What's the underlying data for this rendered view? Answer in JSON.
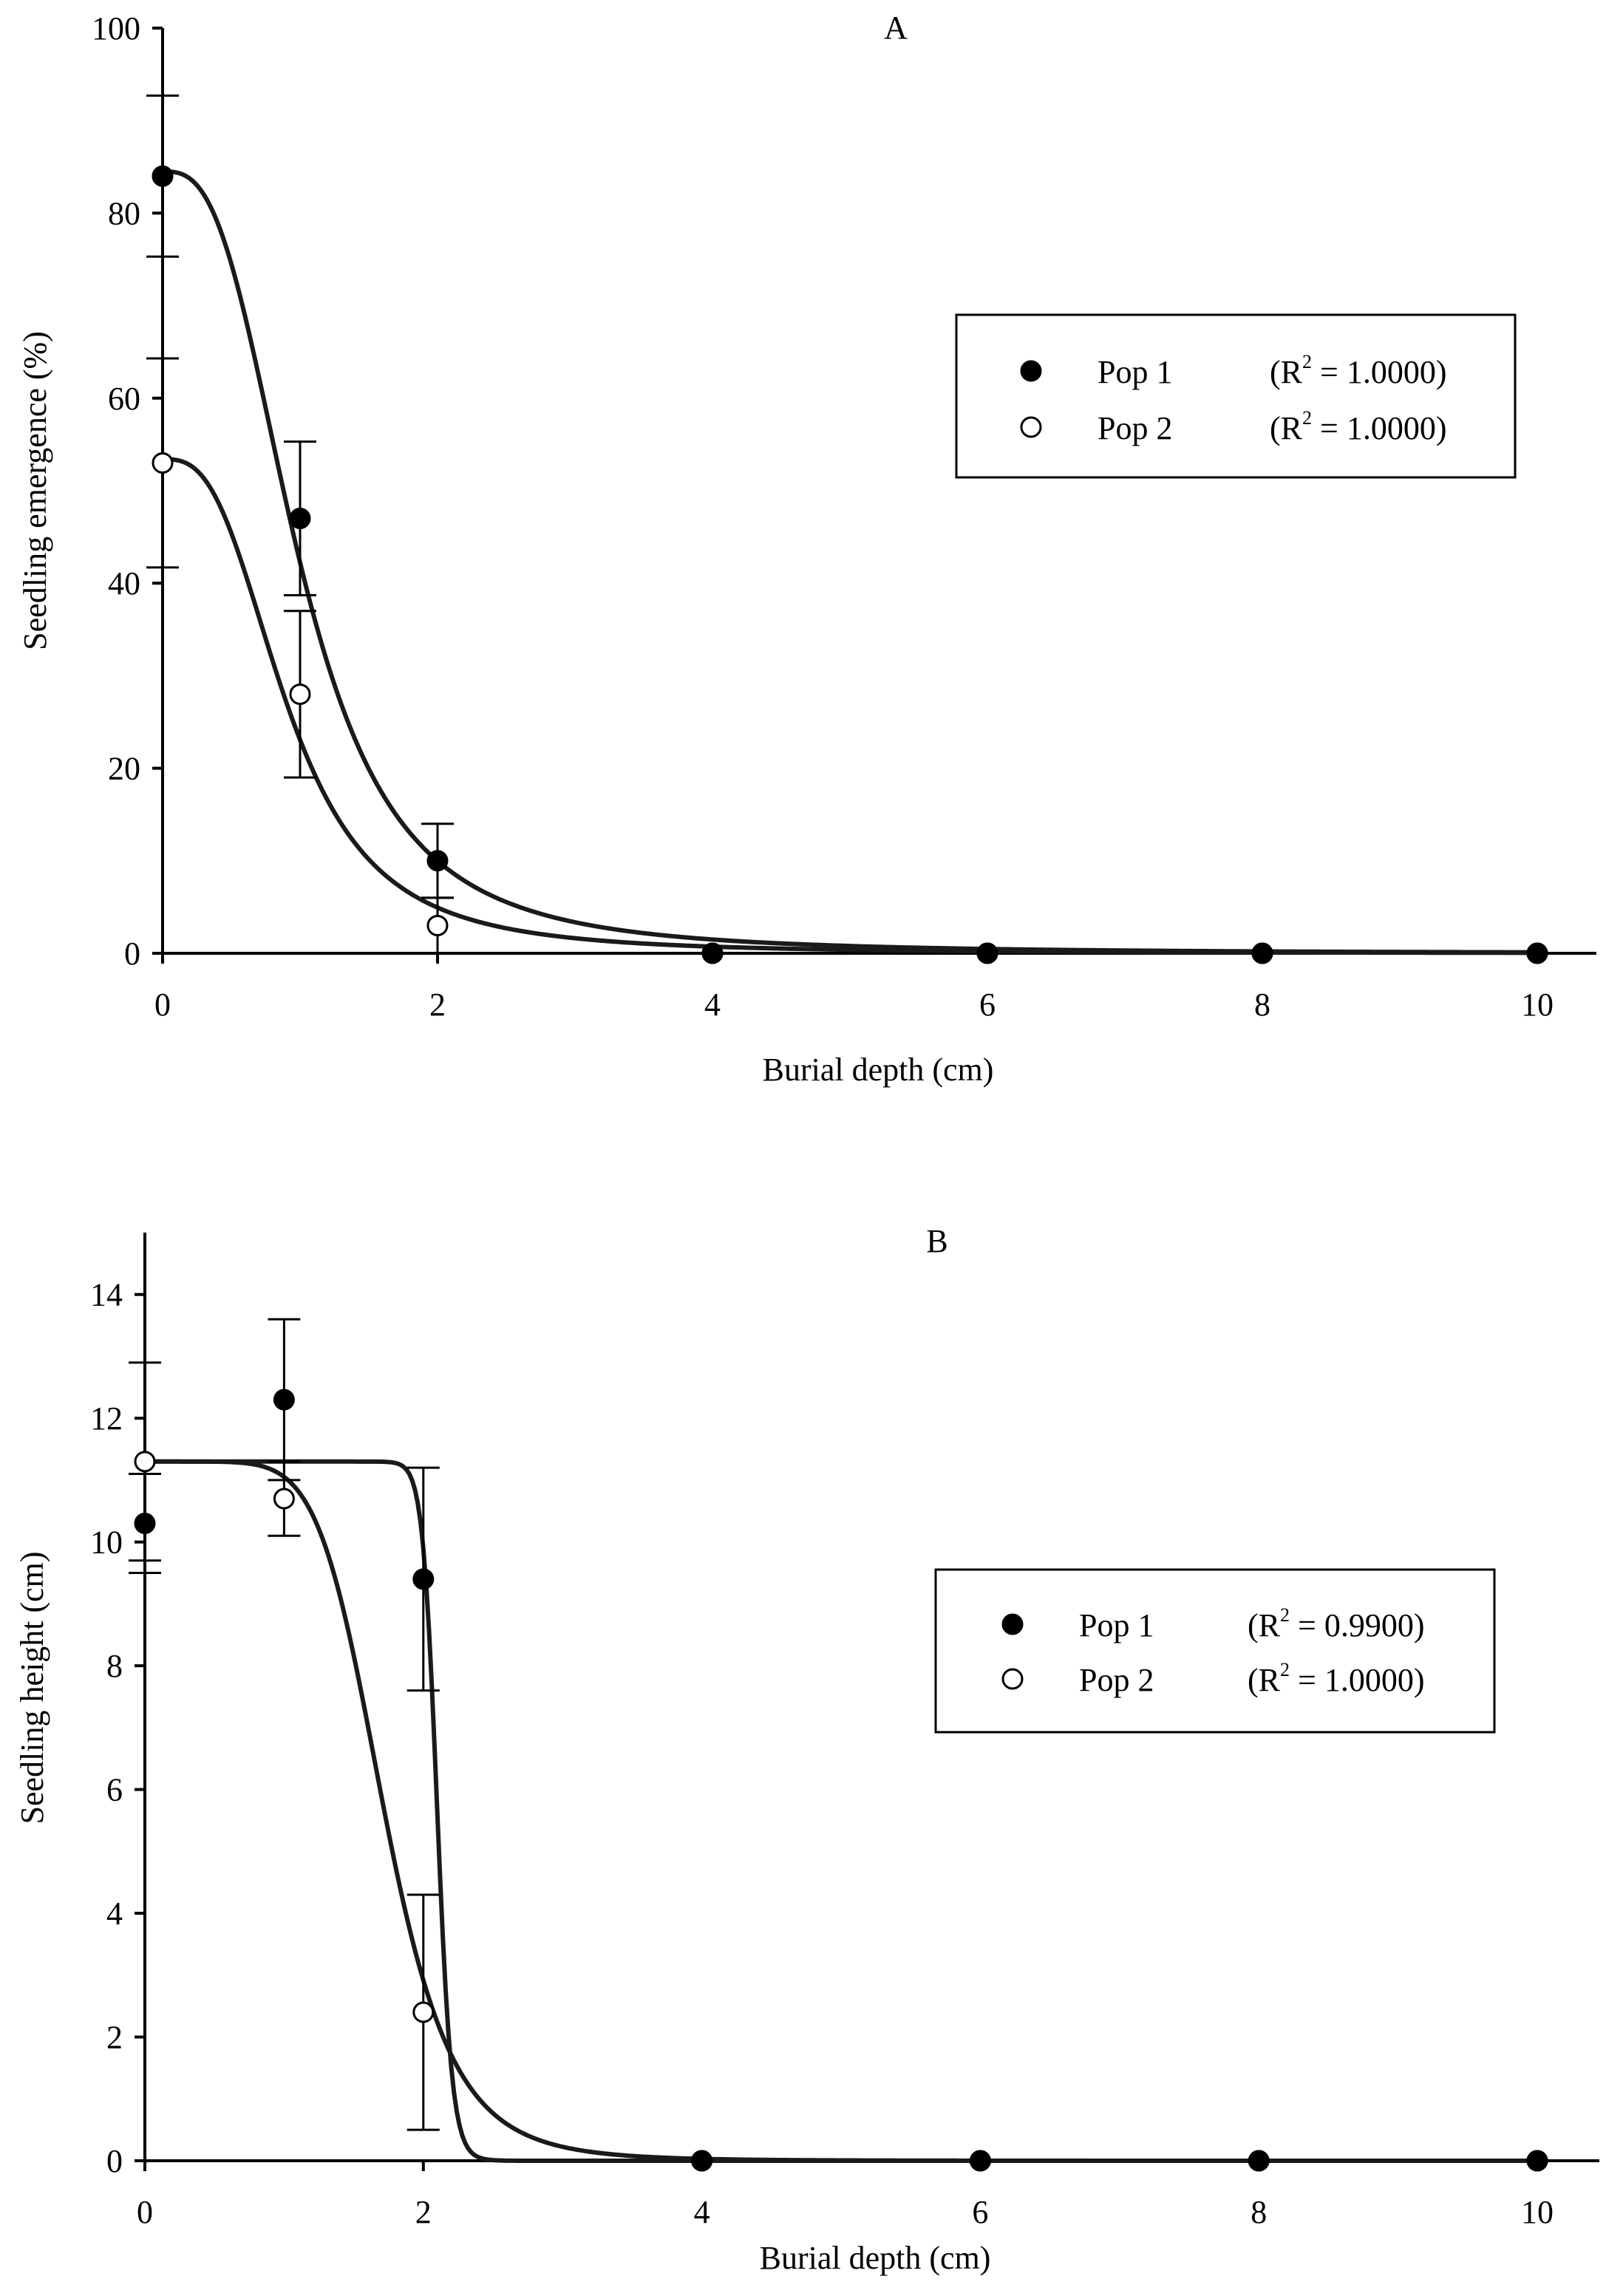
{
  "chart_data": [
    {
      "type": "scatter",
      "panel": "A",
      "title": "A",
      "xlabel": "Burial depth (cm)",
      "ylabel": "Seedling emergence (%)",
      "xlim": [
        0,
        10.5
      ],
      "ylim": [
        0,
        100
      ],
      "xticks": [
        0,
        2,
        4,
        6,
        8,
        10
      ],
      "yticks": [
        0,
        20,
        40,
        60,
        80,
        100
      ],
      "legend_position": "upper-right",
      "series": [
        {
          "name": "Pop 1",
          "r2": "(R2 = 1.0000)",
          "r2_prefix": "(R",
          "r2_sup": "2",
          "r2_suffix": " = 1.0000)",
          "marker": "filled",
          "x": [
            0,
            1,
            2,
            4,
            6,
            8,
            10
          ],
          "y": [
            84,
            47,
            10,
            0,
            0,
            0,
            0
          ],
          "err": [
            8.7,
            8.3,
            4.0,
            0,
            0,
            0,
            0
          ],
          "fit": {
            "a": 84.5,
            "x0": 1.0,
            "b": 2.9
          }
        },
        {
          "name": "Pop 2",
          "r2": "(R2 = 1.0000)",
          "r2_prefix": "(R",
          "r2_sup": "2",
          "r2_suffix": " = 1.0000)",
          "marker": "open",
          "x": [
            0,
            1,
            2,
            4,
            6,
            8,
            10
          ],
          "y": [
            53,
            28,
            3,
            0,
            0,
            0,
            0
          ],
          "err": [
            11.3,
            9.0,
            3.0,
            0,
            0,
            0,
            0
          ],
          "fit": {
            "a": 53.4,
            "x0": 0.91,
            "b": 2.9
          }
        }
      ]
    },
    {
      "type": "scatter",
      "panel": "B",
      "title": "B",
      "xlabel": "Burial depth (cm)",
      "ylabel": "Seedling height (cm)",
      "xlim": [
        0,
        10.5
      ],
      "ylim": [
        0,
        15
      ],
      "xticks": [
        0,
        2,
        4,
        6,
        8,
        10
      ],
      "yticks": [
        0,
        2,
        4,
        6,
        8,
        10,
        12,
        14
      ],
      "legend_position": "middle-right",
      "series": [
        {
          "name": "Pop 1",
          "r2": "(R2 = 0.9900)",
          "r2_prefix": "(R",
          "r2_sup": "2",
          "r2_suffix": " = 0.9900)",
          "marker": "filled",
          "x": [
            0,
            1,
            2,
            4,
            6,
            8,
            10
          ],
          "y": [
            10.3,
            12.3,
            9.4,
            0,
            0,
            0,
            0
          ],
          "err": [
            0.8,
            1.3,
            1.8,
            0,
            0,
            0,
            0
          ],
          "fit": {
            "a": 11.3,
            "x0": 2.1,
            "b": 40
          }
        },
        {
          "name": "Pop 2",
          "r2": "(R2 = 1.0000)",
          "r2_prefix": "(R",
          "r2_sup": "2",
          "r2_suffix": " = 1.0000)",
          "marker": "open",
          "x": [
            0,
            1,
            2,
            4,
            6,
            8,
            10
          ],
          "y": [
            11.3,
            10.7,
            2.4,
            0,
            0,
            0,
            0
          ],
          "err": [
            1.6,
            0.6,
            1.9,
            0,
            0,
            0,
            0
          ],
          "fit": {
            "a": 11.3,
            "x0": 1.72,
            "b": 7
          }
        }
      ]
    }
  ]
}
